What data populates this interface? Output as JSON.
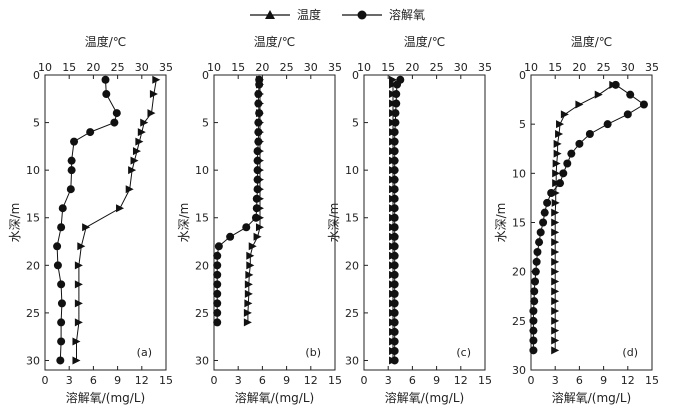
{
  "legend": {
    "temperature": "温度",
    "oxygen": "溶解氧"
  },
  "axis_labels": {
    "top": "温度/℃",
    "bottom": "溶解氧/(mg/L)",
    "left": "水深/m"
  },
  "chart_data": [
    {
      "type": "line",
      "panel_label": "(a)",
      "ylabel": "水深/m",
      "top_xlabel": "温度/℃",
      "bottom_xlabel": "溶解氧/(mg/L)",
      "ylim": [
        0,
        31
      ],
      "y_inverted": true,
      "top_xlim": [
        10,
        35
      ],
      "bottom_xlim": [
        0,
        15
      ],
      "top_ticks": [
        10,
        15,
        20,
        25,
        30,
        35
      ],
      "bottom_ticks": [
        0,
        3,
        6,
        9,
        12,
        15
      ],
      "y_ticks": [
        0,
        5,
        10,
        15,
        20,
        25,
        30
      ],
      "series": [
        {
          "name": "温度",
          "axis": "top",
          "marker": "triangle",
          "depth": [
            0.5,
            2,
            4,
            5,
            6,
            7,
            8,
            9,
            10,
            12,
            14,
            16,
            18,
            20,
            22,
            24,
            26,
            28,
            30
          ],
          "values": [
            33,
            32.5,
            32,
            30.5,
            30,
            29.5,
            29,
            28.5,
            28,
            27.5,
            25.5,
            18.5,
            17.5,
            17,
            17,
            17,
            17,
            16.5,
            16.5
          ]
        },
        {
          "name": "溶解氧",
          "axis": "bottom",
          "marker": "circle",
          "depth": [
            0.5,
            2,
            4,
            5,
            6,
            7,
            9,
            10,
            12,
            14,
            16,
            18,
            20,
            22,
            24,
            26,
            28,
            30
          ],
          "values": [
            7.5,
            7.6,
            8.9,
            8.6,
            5.6,
            3.6,
            3.3,
            3.3,
            3.2,
            2.2,
            2.0,
            1.5,
            1.6,
            2.0,
            2.1,
            2.0,
            2.0,
            1.9
          ]
        }
      ]
    },
    {
      "type": "line",
      "panel_label": "(b)",
      "ylabel": "水深/m",
      "top_xlabel": "温度/℃",
      "bottom_xlabel": "溶解氧/(mg/L)",
      "ylim": [
        0,
        31
      ],
      "y_inverted": true,
      "top_xlim": [
        10,
        35
      ],
      "bottom_xlim": [
        0,
        15
      ],
      "top_ticks": [
        10,
        15,
        20,
        25,
        30,
        35
      ],
      "bottom_ticks": [
        0,
        3,
        6,
        9,
        12,
        15
      ],
      "y_ticks": [
        0,
        5,
        10,
        15,
        20,
        25,
        30
      ],
      "series": [
        {
          "name": "温度",
          "axis": "top",
          "marker": "triangle",
          "depth": [
            0.5,
            1,
            2,
            3,
            4,
            5,
            6,
            7,
            8,
            9,
            10,
            11,
            12,
            13,
            14,
            15,
            16,
            17,
            18,
            19,
            20,
            21,
            22,
            23,
            24,
            25,
            26
          ],
          "values": [
            19.5,
            19.5,
            19.5,
            19.5,
            19.5,
            19.5,
            19.5,
            19.5,
            19.5,
            19.5,
            19.5,
            19.5,
            19.5,
            19.5,
            19.5,
            19.5,
            19.5,
            19,
            18,
            17.5,
            17.5,
            17.3,
            17.2,
            17.2,
            17.1,
            17,
            17
          ]
        },
        {
          "name": "溶解氧",
          "axis": "bottom",
          "marker": "circle",
          "depth": [
            0.5,
            1,
            2,
            3,
            4,
            5,
            6,
            7,
            8,
            9,
            10,
            11,
            12,
            13,
            14,
            15,
            16,
            17,
            18,
            19,
            20,
            21,
            22,
            23,
            24,
            25,
            26
          ],
          "values": [
            5.6,
            5.6,
            5.5,
            5.5,
            5.6,
            5.5,
            5.5,
            5.5,
            5.4,
            5.4,
            5.4,
            5.4,
            5.4,
            5.3,
            5.3,
            5.2,
            4.0,
            2.0,
            0.6,
            0.4,
            0.4,
            0.4,
            0.4,
            0.4,
            0.4,
            0.4,
            0.4
          ]
        }
      ]
    },
    {
      "type": "line",
      "panel_label": "(c)",
      "ylabel": "水深/m",
      "top_xlabel": "温度/℃",
      "bottom_xlabel": "溶解氧/(mg/L)",
      "ylim": [
        0,
        31
      ],
      "y_inverted": true,
      "top_xlim": [
        10,
        35
      ],
      "bottom_xlim": [
        0,
        15
      ],
      "top_ticks": [
        10,
        15,
        20,
        25,
        30,
        35
      ],
      "bottom_ticks": [
        0,
        3,
        6,
        9,
        12,
        15
      ],
      "y_ticks": [
        0,
        5,
        10,
        15,
        20,
        25,
        30
      ],
      "series": [
        {
          "name": "温度",
          "axis": "top",
          "marker": "triangle",
          "depth": [
            0.5,
            1,
            2,
            3,
            4,
            5,
            6,
            7,
            8,
            9,
            10,
            11,
            12,
            13,
            14,
            15,
            16,
            17,
            18,
            19,
            20,
            21,
            22,
            23,
            24,
            25,
            26,
            27,
            28,
            29,
            30
          ],
          "values": [
            16,
            16,
            16,
            16,
            16,
            16,
            16,
            16,
            16,
            16,
            16,
            16,
            16,
            16,
            16,
            16,
            16,
            16,
            16,
            16,
            16,
            16,
            16,
            16,
            16,
            16,
            16,
            16,
            16,
            16,
            16
          ]
        },
        {
          "name": "溶解氧",
          "axis": "bottom",
          "marker": "circle",
          "depth": [
            0.5,
            1,
            2,
            3,
            4,
            5,
            6,
            7,
            8,
            9,
            10,
            11,
            12,
            13,
            14,
            15,
            16,
            17,
            18,
            19,
            20,
            21,
            22,
            23,
            24,
            25,
            26,
            27,
            28,
            29,
            30
          ],
          "values": [
            4.5,
            4.1,
            4.0,
            4.0,
            3.9,
            3.9,
            3.8,
            3.8,
            3.8,
            3.8,
            3.8,
            3.8,
            3.8,
            3.8,
            3.8,
            3.8,
            3.8,
            3.8,
            3.8,
            3.8,
            3.8,
            3.8,
            3.8,
            3.8,
            3.8,
            3.8,
            3.8,
            3.8,
            3.8,
            3.8,
            3.8
          ]
        }
      ]
    },
    {
      "type": "line",
      "panel_label": "(d)",
      "ylabel": "水深/m",
      "top_xlabel": "温度/℃",
      "bottom_xlabel": "溶解氧/(mg/L)",
      "ylim": [
        0,
        30
      ],
      "y_inverted": true,
      "top_xlim": [
        10,
        35
      ],
      "bottom_xlim": [
        0,
        15
      ],
      "top_ticks": [
        10,
        15,
        20,
        25,
        30,
        35
      ],
      "bottom_ticks": [
        0,
        3,
        6,
        9,
        12,
        15
      ],
      "y_ticks": [
        0,
        5,
        10,
        15,
        20,
        25,
        30
      ],
      "series": [
        {
          "name": "温度",
          "axis": "top",
          "marker": "triangle",
          "depth": [
            1,
            2,
            3,
            4,
            5,
            6,
            7,
            8,
            9,
            10,
            11,
            12,
            13,
            14,
            15,
            16,
            17,
            18,
            19,
            20,
            21,
            22,
            23,
            24,
            25,
            26,
            27,
            28
          ],
          "values": [
            27,
            24,
            20,
            17,
            16,
            15.8,
            15.5,
            15.5,
            15.3,
            15.2,
            15.2,
            15.1,
            15.1,
            15,
            15,
            15,
            15,
            15,
            15,
            15,
            15,
            15,
            15,
            15,
            15,
            15,
            15,
            15
          ]
        },
        {
          "name": "溶解氧",
          "axis": "bottom",
          "marker": "circle",
          "depth": [
            1,
            2,
            3,
            4,
            5,
            6,
            7,
            8,
            9,
            10,
            11,
            12,
            13,
            14,
            15,
            16,
            17,
            18,
            19,
            20,
            21,
            22,
            23,
            24,
            25,
            26,
            27,
            28
          ],
          "values": [
            10.5,
            12.3,
            14.0,
            12.0,
            9.5,
            7.3,
            6.0,
            5.0,
            4.5,
            4.0,
            3.6,
            2.5,
            2.0,
            1.7,
            1.5,
            1.2,
            1.0,
            0.8,
            0.7,
            0.6,
            0.5,
            0.4,
            0.4,
            0.3,
            0.3,
            0.3,
            0.3,
            0.3
          ]
        }
      ]
    }
  ]
}
